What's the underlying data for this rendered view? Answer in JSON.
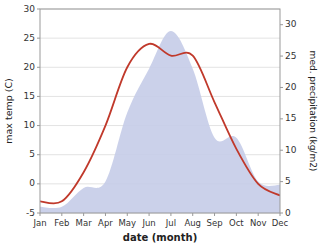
{
  "chart_data": {
    "type": "line",
    "categories": [
      "Jan",
      "Feb",
      "Mar",
      "Apr",
      "May",
      "Jun",
      "Jul",
      "Aug",
      "Sep",
      "Oct",
      "Nov",
      "Dec"
    ],
    "xlabel": "date (month)",
    "ylabel": "max temp (C)",
    "y2label": "med. precipitation (kg/m2)",
    "series": [
      {
        "type": "area",
        "axis": "y2",
        "color": "#c5cce8",
        "values": [
          1,
          1,
          4,
          5,
          16,
          23,
          29,
          23,
          12,
          12,
          5,
          4.5
        ]
      },
      {
        "type": "line",
        "color": "#c0392b",
        "values": [
          -3,
          -3,
          2,
          10,
          20,
          24,
          22,
          22,
          14,
          6,
          0,
          -2
        ]
      }
    ],
    "ylim": [
      -5,
      30
    ],
    "yticks": [
      -5,
      0,
      5,
      10,
      15,
      20,
      25,
      30
    ],
    "y2lim": [
      0,
      32.5
    ],
    "y2ticks": [
      0,
      5,
      10,
      15,
      20,
      25,
      30
    ],
    "grid": true
  }
}
